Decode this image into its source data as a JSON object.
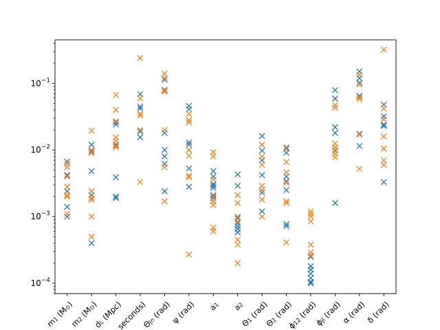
{
  "chart_data": {
    "type": "scatter",
    "yscale": "log",
    "ylim": [
      7e-05,
      0.45
    ],
    "y_ticks": [
      {
        "value": 0.0001,
        "base": "10",
        "exp": "−4"
      },
      {
        "value": 0.001,
        "base": "10",
        "exp": "−3"
      },
      {
        "value": 0.01,
        "base": "10",
        "exp": "−2"
      },
      {
        "value": 0.1,
        "base": "10",
        "exp": "−1"
      }
    ],
    "categories": [
      "m1 (M☉)",
      "m2 (M☉)",
      "dL (Mpc)",
      "seconds)",
      "Θjn (rad)",
      "ψ (rad)",
      "a1",
      "a2",
      "Θ1 (rad)",
      "Θ2 (rad)",
      "φ12 (rad)",
      "φjl (rad)",
      "α (rad)",
      "δ (rad)"
    ],
    "category_labels": [
      {
        "main": "m",
        "sub": "1",
        "rest": " (M",
        "sun": "⊙",
        "end": ")"
      },
      {
        "main": "m",
        "sub": "2",
        "rest": " (M",
        "sun": "⊙",
        "end": ")"
      },
      {
        "main": "d",
        "sub": "L",
        "rest": " (Mpc)",
        "sun": "",
        "end": ""
      },
      {
        "main": "seconds)",
        "sub": "",
        "rest": "",
        "sun": "",
        "end": ""
      },
      {
        "main": "Θ",
        "sub": "jn",
        "rest": " (rad)",
        "sun": "",
        "end": ""
      },
      {
        "main": "ψ",
        "sub": "",
        "rest": " (rad)",
        "sun": "",
        "end": ""
      },
      {
        "main": "a",
        "sub": "1",
        "rest": "",
        "sun": "",
        "end": ""
      },
      {
        "main": "a",
        "sub": "2",
        "rest": "",
        "sun": "",
        "end": ""
      },
      {
        "main": "Θ",
        "sub": "1",
        "rest": " (rad)",
        "sun": "",
        "end": ""
      },
      {
        "main": "Θ",
        "sub": "2",
        "rest": " (rad)",
        "sun": "",
        "end": ""
      },
      {
        "main": "ϕ",
        "sub": "12",
        "rest": " (rad)",
        "sun": "",
        "end": ""
      },
      {
        "main": "ϕ",
        "sub": "jl",
        "rest": " (rad)",
        "sun": "",
        "end": ""
      },
      {
        "main": "α",
        "sub": "",
        "rest": " (rad)",
        "sun": "",
        "end": ""
      },
      {
        "main": "δ",
        "sub": "",
        "rest": " (rad)",
        "sun": "",
        "end": ""
      }
    ],
    "series": [
      {
        "color": "#1f77b4",
        "marker": "x",
        "values": [
          [
            0.0067,
            0.0042,
            0.0024,
            0.0014,
            0.001
          ],
          [
            0.012,
            0.0095,
            0.0048,
            0.0021,
            0.0004
          ],
          [
            0.026,
            0.024,
            0.012,
            0.0039,
            0.002,
            0.0019
          ],
          [
            0.069,
            0.045,
            0.042,
            0.019,
            0.0155
          ],
          [
            0.113,
            0.08,
            0.018,
            0.01,
            0.008,
            0.0062,
            0.0024
          ],
          [
            0.046,
            0.041,
            0.013,
            0.012,
            0.01,
            0.0053,
            0.0028
          ],
          [
            0.0048,
            0.004,
            0.0031,
            0.0029,
            0.0027,
            0.0021,
            0.0019,
            0.0017
          ],
          [
            0.0043,
            0.0029,
            0.00095,
            0.0008,
            0.00072,
            0.00065,
            0.00058
          ],
          [
            0.0162,
            0.0098,
            0.007,
            0.0042,
            0.0023,
            0.0012
          ],
          [
            0.0105,
            0.0091,
            0.004,
            0.0034,
            0.0025,
            0.00077,
            0.00072
          ],
          [
            0.00025,
            0.00018,
            0.00016,
            0.00014,
            0.00012,
            0.000105,
            0.0001
          ],
          [
            0.079,
            0.059,
            0.022,
            0.018,
            0.0098,
            0.0016
          ],
          [
            0.151,
            0.12,
            0.102,
            0.065,
            0.0175,
            0.0115
          ],
          [
            0.048,
            0.032,
            0.024,
            0.023,
            0.0033
          ]
        ]
      },
      {
        "color": "#ff7f0e",
        "marker": "x",
        "values": [
          [
            0.0062,
            0.0055,
            0.004,
            0.0028,
            0.0021,
            0.002,
            0.0011
          ],
          [
            0.0195,
            0.01,
            0.009,
            0.0024,
            0.0019,
            0.0018,
            0.001,
            0.0005
          ],
          [
            0.067,
            0.04,
            0.027,
            0.0155,
            0.0135,
            0.0115,
            0.011
          ],
          [
            0.24,
            0.06,
            0.035,
            0.033,
            0.02,
            0.0033
          ],
          [
            0.14,
            0.12,
            0.078,
            0.075,
            0.02,
            0.0055,
            0.0017
          ],
          [
            0.035,
            0.028,
            0.026,
            0.01,
            0.0082,
            0.0041,
            0.0039,
            0.00027
          ],
          [
            0.0093,
            0.008,
            0.0036,
            0.002,
            0.0017,
            0.0015,
            0.00068,
            0.0006
          ],
          [
            0.0021,
            0.0016,
            0.001,
            0.00085,
            0.00045,
            0.00038,
            0.0002
          ],
          [
            0.012,
            0.008,
            0.006,
            0.0029,
            0.0025,
            0.0018,
            0.001
          ],
          [
            0.011,
            0.0066,
            0.0046,
            0.0032,
            0.0017,
            0.0016,
            0.00041
          ],
          [
            0.0012,
            0.0011,
            0.001,
            0.00085,
            0.00038,
            0.00029,
            0.00026
          ],
          [
            0.047,
            0.043,
            0.0125,
            0.011,
            0.01,
            0.0088,
            0.0078
          ],
          [
            0.135,
            0.096,
            0.062,
            0.058,
            0.017,
            0.0052
          ],
          [
            0.32,
            0.042,
            0.029,
            0.016,
            0.0105,
            0.007,
            0.006
          ]
        ]
      }
    ]
  }
}
